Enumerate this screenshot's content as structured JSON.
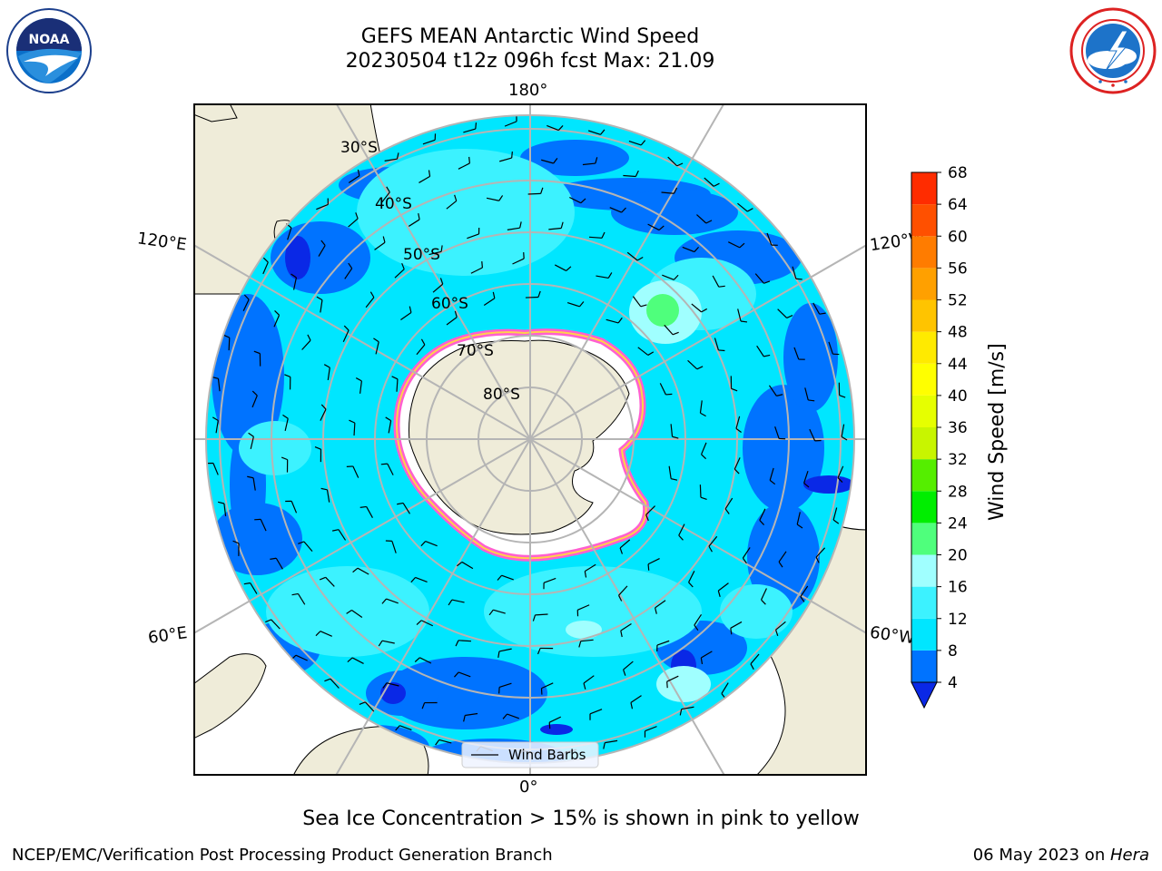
{
  "header": {
    "title_line1": "GEFS MEAN Antarctic Wind Speed",
    "title_line2": "20230504 t12z 096h fcst   Max: 21.09"
  },
  "logos": {
    "noaa": {
      "icon": "noaa-logo-icon",
      "text": "NOAA"
    },
    "nws": {
      "icon": "nws-logo-icon"
    }
  },
  "map": {
    "projection": "south-polar-stereographic",
    "longitude_labels": {
      "top": "180°",
      "bottom": "0°",
      "upper_left": "120°E",
      "upper_right": "120°W",
      "lower_left": "60°E",
      "lower_right": "60°W"
    },
    "latitude_labels": [
      "30°S",
      "40°S",
      "50°S",
      "60°S",
      "70°S",
      "80°S"
    ],
    "legend_label": "Wind Barbs",
    "colors": {
      "land": "#efecd9",
      "ice_shelf": "#ffffff",
      "ice_edge_pink": "#ff5fd0",
      "ice_edge_yellow": "#ffd24a",
      "grid": "#b5b5b5"
    }
  },
  "colorbar": {
    "label": "Wind Speed [m/s]",
    "ticks": [
      "4",
      "8",
      "12",
      "16",
      "20",
      "24",
      "28",
      "32",
      "36",
      "40",
      "44",
      "48",
      "52",
      "56",
      "60",
      "64",
      "68"
    ],
    "colors": [
      "#0073ff",
      "#00e6ff",
      "#3cf2ff",
      "#a0ffff",
      "#4fff7c",
      "#00ee00",
      "#55ee00",
      "#c8f500",
      "#e6ff00",
      "#ffff00",
      "#ffea00",
      "#ffc400",
      "#ffa000",
      "#ff7c00",
      "#ff5000",
      "#ff2c00",
      "#ff0000"
    ],
    "under_color": "#0a28e6"
  },
  "caption": "Sea Ice Concentration > 15% is shown in pink to yellow",
  "footer": {
    "left": "NCEP/EMC/Verification Post Processing Product Generation Branch",
    "right_prefix": "06 May 2023 on ",
    "right_host": "Hera"
  }
}
